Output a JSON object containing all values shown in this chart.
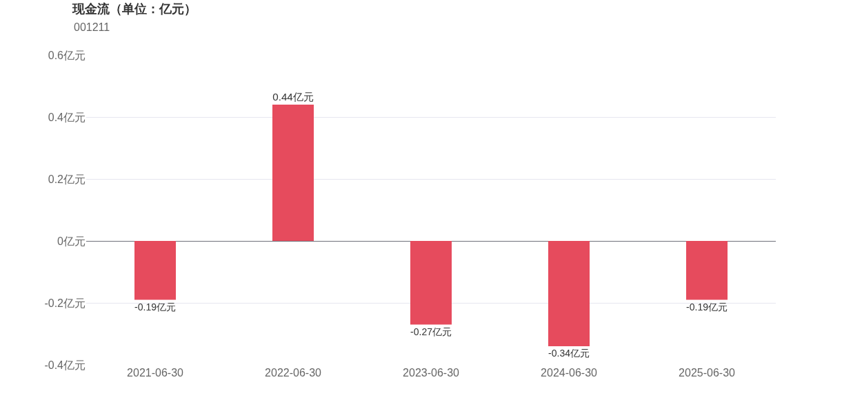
{
  "chart_data": {
    "type": "bar",
    "title": "现金流（单位：亿元）",
    "subtitle": "001211",
    "categories": [
      "2021-06-30",
      "2022-06-30",
      "2023-06-30",
      "2024-06-30",
      "2025-06-30"
    ],
    "values": [
      -0.19,
      0.44,
      -0.27,
      -0.34,
      -0.19
    ],
    "value_labels": [
      "-0.19亿元",
      "0.44亿元",
      "-0.27亿元",
      "-0.34亿元",
      "-0.19亿元"
    ],
    "color": "#e64b5d",
    "ylim": [
      -0.4,
      0.6
    ],
    "yticks": [
      {
        "value": -0.4,
        "label": "-0.4亿元"
      },
      {
        "value": -0.2,
        "label": "-0.2亿元"
      },
      {
        "value": 0,
        "label": "0亿元"
      },
      {
        "value": 0.2,
        "label": "0.2亿元"
      },
      {
        "value": 0.4,
        "label": "0.4亿元"
      },
      {
        "value": 0.6,
        "label": "0.6亿元"
      }
    ],
    "grid": "y"
  }
}
